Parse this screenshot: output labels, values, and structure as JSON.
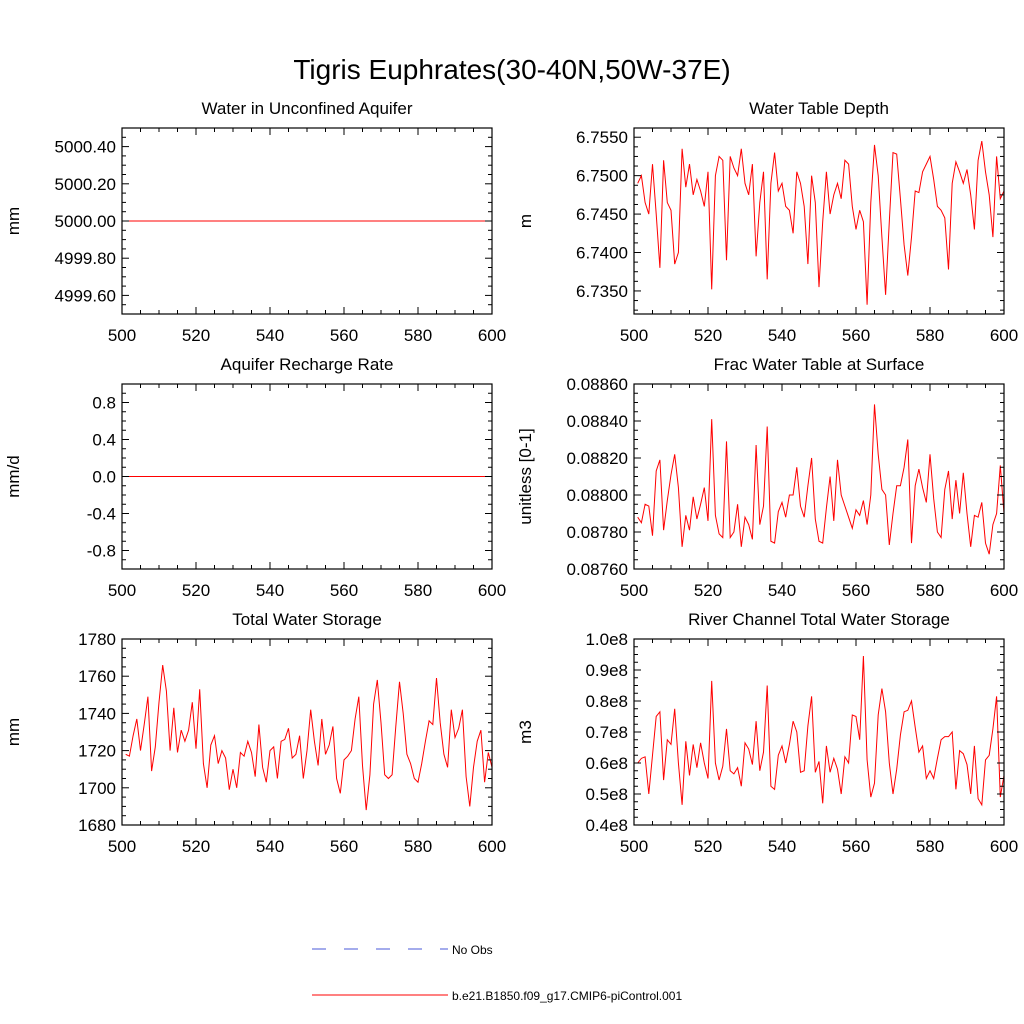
{
  "title": "Tigris Euphrates(30-40N,50W-37E)",
  "legend": {
    "entries": [
      {
        "label": "No Obs",
        "color": "#4a5ad8",
        "dash": "dashed"
      },
      {
        "label": "b.e21.B1850.f09_g17.CMIP6-piControl.001",
        "color": "#ff0000",
        "dash": "solid"
      }
    ]
  },
  "colors": {
    "model": "#ff0000",
    "obs": "#4a5ad8",
    "axis": "#000000"
  },
  "chart_data": [
    {
      "type": "line",
      "title": "Water in Unconfined Aquifer",
      "ylabel": "mm",
      "xlim": [
        500,
        600
      ],
      "ylim": [
        4999.5,
        5000.5
      ],
      "x_ticks": [
        "500",
        "520",
        "540",
        "560",
        "580",
        "600"
      ],
      "y_tick_values": [
        4999.6,
        4999.8,
        5000.0,
        5000.2,
        5000.4
      ],
      "y_tick_labels": [
        "4999.60",
        "4999.80",
        "5000.00",
        "5000.20",
        "5000.40"
      ],
      "x_start": 501,
      "series": [
        {
          "name": "b.e21.B1850.f09_g17.CMIP6-piControl.001",
          "values": [
            5000,
            5000,
            5000,
            5000,
            5000,
            5000,
            5000,
            5000,
            5000,
            5000,
            5000,
            5000,
            5000,
            5000,
            5000,
            5000,
            5000,
            5000,
            5000,
            5000,
            5000,
            5000,
            5000,
            5000,
            5000,
            5000,
            5000,
            5000,
            5000,
            5000,
            5000,
            5000,
            5000,
            5000,
            5000,
            5000,
            5000,
            5000,
            5000,
            5000,
            5000,
            5000,
            5000,
            5000,
            5000,
            5000,
            5000,
            5000,
            5000,
            5000,
            5000,
            5000,
            5000,
            5000,
            5000,
            5000,
            5000,
            5000,
            5000,
            5000,
            5000,
            5000,
            5000,
            5000,
            5000,
            5000,
            5000,
            5000,
            5000,
            5000,
            5000,
            5000,
            5000,
            5000,
            5000,
            5000,
            5000,
            5000,
            5000,
            5000,
            5000,
            5000,
            5000,
            5000,
            5000,
            5000,
            5000,
            5000,
            5000,
            5000,
            5000,
            5000,
            5000,
            5000,
            5000,
            5000,
            5000,
            5000,
            5000,
            5000
          ]
        }
      ]
    },
    {
      "type": "line",
      "title": "Water Table Depth",
      "ylabel": "m",
      "xlim": [
        500,
        600
      ],
      "ylim": [
        6.732,
        6.7562
      ],
      "x_ticks": [
        "500",
        "520",
        "540",
        "560",
        "580",
        "600"
      ],
      "y_tick_values": [
        6.735,
        6.74,
        6.745,
        6.75,
        6.755
      ],
      "y_tick_labels": [
        "6.7350",
        "6.7400",
        "6.7450",
        "6.7500",
        "6.7550"
      ],
      "x_start": 501,
      "series": [
        {
          "name": "b.e21.B1850.f09_g17.CMIP6-piControl.001",
          "values": [
            6.749,
            6.75,
            6.7465,
            6.745,
            6.7515,
            6.745,
            6.738,
            6.752,
            6.7465,
            6.7455,
            6.7385,
            6.74,
            6.7535,
            6.7485,
            6.7515,
            6.7475,
            6.7495,
            6.748,
            6.746,
            6.7505,
            6.7352,
            6.75,
            6.7525,
            6.752,
            6.739,
            6.7525,
            6.751,
            6.75,
            6.7535,
            6.749,
            6.7475,
            6.7515,
            6.7395,
            6.7465,
            6.7505,
            6.7365,
            6.749,
            6.753,
            6.748,
            6.749,
            6.746,
            6.7455,
            6.7425,
            6.7505,
            6.749,
            6.746,
            6.7385,
            6.75,
            6.7465,
            6.7355,
            6.744,
            6.7505,
            6.745,
            6.7475,
            6.749,
            6.747,
            6.752,
            6.7515,
            6.746,
            6.743,
            6.7455,
            6.744,
            6.7332,
            6.7465,
            6.754,
            6.75,
            6.742,
            6.7345,
            6.744,
            6.753,
            6.7528,
            6.747,
            6.741,
            6.737,
            6.742,
            6.748,
            6.7478,
            6.7505,
            6.7515,
            6.7525,
            6.7495,
            6.746,
            6.7455,
            6.7445,
            6.7378,
            6.749,
            6.7518,
            6.7505,
            6.749,
            6.7508,
            6.7475,
            6.743,
            6.752,
            6.7545,
            6.7505,
            6.7475,
            6.742,
            6.7525,
            6.747,
            6.748
          ]
        }
      ]
    },
    {
      "type": "line",
      "title": "Aquifer Recharge Rate",
      "ylabel": "mm/d",
      "xlim": [
        500,
        600
      ],
      "ylim": [
        -1.0,
        1.0
      ],
      "x_ticks": [
        "500",
        "520",
        "540",
        "560",
        "580",
        "600"
      ],
      "y_tick_values": [
        -0.8,
        -0.4,
        0.0,
        0.4,
        0.8
      ],
      "y_tick_labels": [
        "-0.8",
        "-0.4",
        "0.0",
        "0.4",
        "0.8"
      ],
      "x_start": 501,
      "series": [
        {
          "name": "b.e21.B1850.f09_g17.CMIP6-piControl.001",
          "values": [
            0,
            0,
            0,
            0,
            0,
            0,
            0,
            0,
            0,
            0,
            0,
            0,
            0,
            0,
            0,
            0,
            0,
            0,
            0,
            0,
            0,
            0,
            0,
            0,
            0,
            0,
            0,
            0,
            0,
            0,
            0,
            0,
            0,
            0,
            0,
            0,
            0,
            0,
            0,
            0,
            0,
            0,
            0,
            0,
            0,
            0,
            0,
            0,
            0,
            0,
            0,
            0,
            0,
            0,
            0,
            0,
            0,
            0,
            0,
            0,
            0,
            0,
            0,
            0,
            0,
            0,
            0,
            0,
            0,
            0,
            0,
            0,
            0,
            0,
            0,
            0,
            0,
            0,
            0,
            0,
            0,
            0,
            0,
            0,
            0,
            0,
            0,
            0,
            0,
            0,
            0,
            0,
            0,
            0,
            0,
            0,
            0,
            0,
            0,
            0
          ]
        }
      ]
    },
    {
      "type": "line",
      "title": "Frac Water Table at Surface",
      "ylabel": "unitless [0-1]",
      "xlim": [
        500,
        600
      ],
      "ylim": [
        0.0876,
        0.0886
      ],
      "x_ticks": [
        "500",
        "520",
        "540",
        "560",
        "580",
        "600"
      ],
      "y_tick_values": [
        0.0876,
        0.0878,
        0.088,
        0.0882,
        0.0884,
        0.0886
      ],
      "y_tick_labels": [
        "0.08760",
        "0.08780",
        "0.08800",
        "0.08820",
        "0.08840",
        "0.08860"
      ],
      "x_start": 501,
      "series": [
        {
          "name": "b.e21.B1850.f09_g17.CMIP6-piControl.001",
          "values": [
            0.08788,
            0.08785,
            0.08795,
            0.08794,
            0.08778,
            0.08813,
            0.08819,
            0.08781,
            0.08797,
            0.08811,
            0.08822,
            0.08804,
            0.08772,
            0.08789,
            0.08781,
            0.08799,
            0.08787,
            0.08795,
            0.08804,
            0.08786,
            0.08841,
            0.08789,
            0.08779,
            0.08777,
            0.08829,
            0.08777,
            0.0878,
            0.08795,
            0.08772,
            0.08788,
            0.08784,
            0.08776,
            0.08827,
            0.08784,
            0.08794,
            0.08837,
            0.08775,
            0.08774,
            0.08791,
            0.08796,
            0.08788,
            0.088,
            0.088,
            0.08815,
            0.08794,
            0.08788,
            0.08805,
            0.0882,
            0.08787,
            0.08775,
            0.08774,
            0.08793,
            0.0881,
            0.08786,
            0.08819,
            0.088,
            0.08794,
            0.08788,
            0.08782,
            0.08792,
            0.08789,
            0.08797,
            0.08784,
            0.088,
            0.08849,
            0.08822,
            0.08803,
            0.088,
            0.08773,
            0.0879,
            0.08805,
            0.08805,
            0.08815,
            0.0883,
            0.08774,
            0.08805,
            0.08814,
            0.08804,
            0.08796,
            0.08822,
            0.08798,
            0.0878,
            0.08777,
            0.08803,
            0.08813,
            0.08787,
            0.08808,
            0.0879,
            0.08812,
            0.0879,
            0.08772,
            0.08789,
            0.08788,
            0.08796,
            0.08774,
            0.08768,
            0.08784,
            0.0879,
            0.08816,
            0.0879
          ]
        }
      ]
    },
    {
      "type": "line",
      "title": "Total Water Storage",
      "ylabel": "mm",
      "xlim": [
        500,
        600
      ],
      "ylim": [
        1680,
        1780
      ],
      "x_ticks": [
        "500",
        "520",
        "540",
        "560",
        "580",
        "600"
      ],
      "y_tick_values": [
        1680,
        1700,
        1720,
        1740,
        1760,
        1780
      ],
      "y_tick_labels": [
        "1680",
        "1700",
        "1720",
        "1740",
        "1760",
        "1780"
      ],
      "x_start": 501,
      "series": [
        {
          "name": "b.e21.B1850.f09_g17.CMIP6-piControl.001",
          "values": [
            1718,
            1717,
            1728,
            1737,
            1720,
            1734,
            1749,
            1709,
            1722,
            1746,
            1766,
            1752,
            1720,
            1743,
            1719,
            1731,
            1725,
            1731,
            1746,
            1721,
            1753,
            1713,
            1700,
            1723,
            1728,
            1713,
            1720,
            1716,
            1699,
            1710,
            1700,
            1719,
            1717,
            1725,
            1719,
            1706,
            1734,
            1711,
            1703,
            1720,
            1722,
            1705,
            1725,
            1726,
            1732,
            1716,
            1718,
            1728,
            1705,
            1720,
            1742,
            1725,
            1712,
            1737,
            1718,
            1723,
            1733,
            1705,
            1697,
            1715,
            1717,
            1720,
            1737,
            1749,
            1712,
            1688,
            1707,
            1745,
            1758,
            1735,
            1707,
            1705,
            1707,
            1733,
            1757,
            1740,
            1718,
            1713,
            1705,
            1703,
            1713,
            1725,
            1736,
            1734,
            1759,
            1735,
            1718,
            1711,
            1742,
            1727,
            1732,
            1742,
            1706,
            1690,
            1711,
            1725,
            1731,
            1703,
            1719,
            1711
          ]
        }
      ]
    },
    {
      "type": "line",
      "title": "River Channel Total Water Storage",
      "ylabel": "m3",
      "xlim": [
        500,
        600
      ],
      "ylim": [
        40000000,
        100000000
      ],
      "x_ticks": [
        "500",
        "520",
        "540",
        "560",
        "580",
        "600"
      ],
      "y_tick_values": [
        40000000,
        50000000,
        60000000,
        70000000,
        80000000,
        90000000,
        100000000
      ],
      "y_tick_labels": [
        "0.4e8",
        "0.5e8",
        "0.6e8",
        "0.7e8",
        "0.8e8",
        "0.9e8",
        "1.0e8"
      ],
      "x_start": 501,
      "series": [
        {
          "name": "b.e21.B1850.f09_g17.CMIP6-piControl.001",
          "values": [
            60000000,
            61500000,
            62000000,
            50000000,
            62500000,
            75000000,
            76500000,
            54500000,
            67500000,
            66000000,
            77500000,
            60000000,
            46500000,
            67000000,
            56000000,
            66000000,
            58500000,
            66500000,
            60000000,
            55000000,
            86500000,
            60000000,
            54500000,
            59000000,
            71000000,
            57500000,
            56500000,
            58500000,
            52500000,
            66500000,
            64500000,
            59500000,
            73500000,
            57500000,
            63500000,
            85000000,
            52500000,
            51500000,
            62500000,
            65500000,
            60000000,
            66000000,
            73500000,
            70000000,
            57000000,
            57500000,
            72000000,
            81500000,
            57000000,
            60500000,
            47000000,
            65500000,
            57000000,
            61500000,
            58000000,
            50000000,
            62000000,
            60000000,
            75500000,
            75000000,
            67500000,
            94500000,
            61000000,
            49000000,
            53500000,
            75500000,
            84000000,
            76500000,
            60000000,
            50000000,
            58000000,
            69000000,
            76500000,
            77000000,
            80000000,
            71500000,
            63500000,
            65500000,
            55000000,
            57500000,
            55000000,
            61500000,
            67500000,
            68500000,
            68500000,
            70000000,
            51500000,
            64000000,
            63000000,
            59500000,
            50000000,
            65500000,
            48500000,
            46500000,
            61000000,
            62500000,
            71000000,
            81500000,
            49000000,
            56000000
          ]
        }
      ]
    }
  ]
}
